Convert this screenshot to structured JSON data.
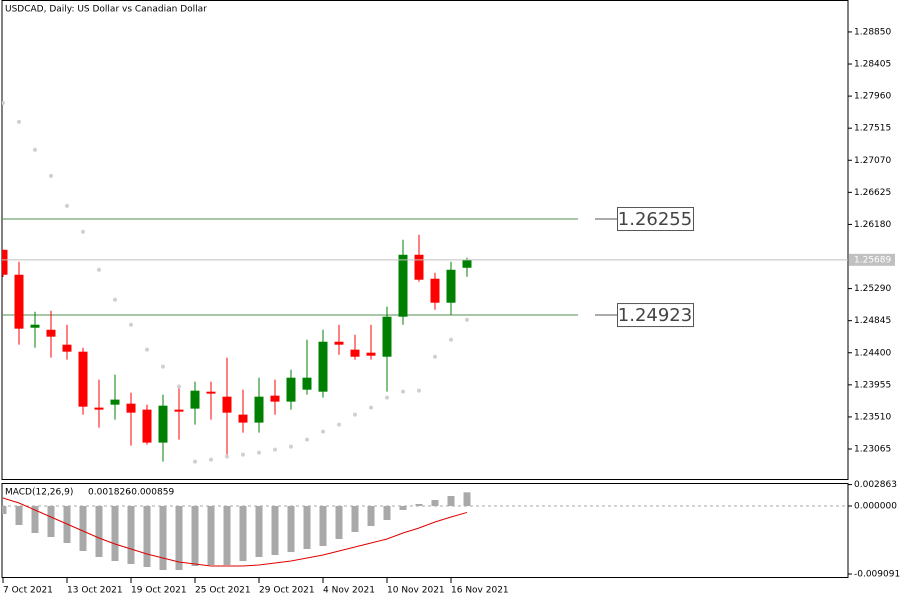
{
  "chart_data": [
    {
      "type": "candlestick",
      "title": "USDCAD, Daily:  US Dollar vs Canadian Dollar",
      "categories": [
        "7 Oct 2021",
        null,
        null,
        null,
        "13 Oct 2021",
        null,
        null,
        null,
        "19 Oct 2021",
        null,
        null,
        null,
        "25 Oct 2021",
        null,
        null,
        null,
        "29 Oct 2021",
        null,
        null,
        null,
        "4 Nov 2021",
        null,
        null,
        null,
        "10 Nov 2021",
        null,
        null,
        null,
        "16 Nov 2021",
        null
      ],
      "open": [
        1.25828,
        1.25482,
        1.24747,
        1.24719,
        1.24512,
        1.24415,
        1.23639,
        1.2368,
        1.23694,
        1.23611,
        1.23154,
        1.23611,
        1.23625,
        1.2386,
        1.23791,
        1.23542,
        1.23431,
        1.23805,
        1.23722,
        1.23888,
        1.2386,
        1.24553,
        1.24443,
        1.24401,
        1.24345,
        1.249,
        1.25759,
        1.25427,
        1.25094,
        1.25579
      ],
      "high": [
        1.25828,
        1.25662,
        1.24969,
        1.24983,
        1.24789,
        1.2447,
        1.24027,
        1.24096,
        1.23847,
        1.2368,
        1.23819,
        1.23957,
        1.23999,
        1.23999,
        1.24332,
        1.23888,
        1.24054,
        1.24027,
        1.24165,
        1.24581,
        1.24719,
        1.24789,
        1.2465,
        1.24789,
        1.25039,
        1.25967,
        1.26036,
        1.2551,
        1.25662,
        1.25718
      ],
      "low": [
        1.2545,
        1.24512,
        1.2447,
        1.24332,
        1.24304,
        1.23542,
        1.23361,
        1.23472,
        1.23112,
        1.23126,
        1.2289,
        1.23195,
        1.23403,
        1.23472,
        1.22987,
        1.23292,
        1.23292,
        1.23542,
        1.23611,
        1.23819,
        1.23777,
        1.24373,
        1.24304,
        1.24304,
        1.2386,
        1.24789,
        1.25385,
        1.24997,
        1.24928,
        1.25454
      ],
      "close": [
        1.25482,
        1.24734,
        1.24789,
        1.24623,
        1.24415,
        1.23652,
        1.23611,
        1.2375,
        1.23569,
        1.23154,
        1.23666,
        1.23583,
        1.23874,
        1.23833,
        1.23569,
        1.23431,
        1.23791,
        1.23722,
        1.24054,
        1.24054,
        1.24553,
        1.24512,
        1.24345,
        1.24359,
        1.249,
        1.25759,
        1.25413,
        1.25094,
        1.25551,
        1.25689
      ],
      "up_color": "#008000",
      "down_color": "#ff0000",
      "sar": [
        1.27866,
        1.27603,
        1.27215,
        1.26854,
        1.26438,
        1.26078,
        1.25551,
        1.25136,
        1.24789,
        1.24443,
        1.24207,
        1.2393,
        1.2289,
        1.22918,
        1.2296,
        1.22987,
        1.23015,
        1.23056,
        1.23098,
        1.23195,
        1.23306,
        1.23403,
        1.23542,
        1.23639,
        1.23777,
        1.2386,
        1.23874,
        1.24345,
        1.24581,
        1.24858
      ],
      "sar_color": "#d0d0d0",
      "levels": [
        1.26255,
        1.24923
      ],
      "level_color": "#4f8f4f",
      "ylim": [
        1.22635,
        1.29293
      ],
      "yticks": [
        {
          "value": 1.2885,
          "label": "1.28850"
        },
        1.28405,
        {
          "value": 1.2796,
          "label": "1.27960"
        },
        1.27515,
        {
          "value": 1.2707,
          "label": "1.27070"
        },
        1.26625,
        {
          "value": 1.2618,
          "label": "1.26180"
        },
        {
          "value": 1.2529,
          "label": "1.25290"
        },
        1.24845,
        {
          "value": 1.244,
          "label": "1.24400"
        },
        1.23955,
        {
          "value": 1.2351,
          "label": "1.23510"
        },
        1.23065
      ]
    },
    {
      "type": "macd",
      "label": "MACD(12,26,9)",
      "histogram": [
        -0.00107,
        -0.00254,
        -0.00361,
        -0.004144,
        -0.004947,
        -0.006016,
        -0.006818,
        -0.007353,
        -0.007754,
        -0.008155,
        -0.008556,
        -0.008556,
        -0.008021,
        -0.007888,
        -0.007888,
        -0.007353,
        -0.006818,
        -0.006551,
        -0.00615,
        -0.005749,
        -0.005348,
        -0.004412,
        -0.003476,
        -0.002674,
        -0.001872,
        -0.000535,
        0.000267,
        0.000802,
        0.001337,
        0.001826
      ],
      "histogram_color": "#a9a9a9",
      "signal": [
        0.00107,
        0.000401,
        -0.000535,
        -0.001471,
        -0.002406,
        -0.003342,
        -0.004278,
        -0.00508,
        -0.005749,
        -0.006417,
        -0.006952,
        -0.007487,
        -0.007754,
        -0.008021,
        -0.008021,
        -0.008021,
        -0.007888,
        -0.00762,
        -0.007353,
        -0.006952,
        -0.006551,
        -0.006016,
        -0.005481,
        -0.004947,
        -0.004412,
        -0.00361,
        -0.002941,
        -0.002139,
        -0.001471,
        -0.000859
      ],
      "signal_color": "#e00000",
      "ylim": [
        -0.009626,
        0.003075
      ],
      "yticks": [
        0.002863,
        {
          "value": 0,
          "label": "0.000000"
        },
        -0.009091
      ]
    }
  ]
}
